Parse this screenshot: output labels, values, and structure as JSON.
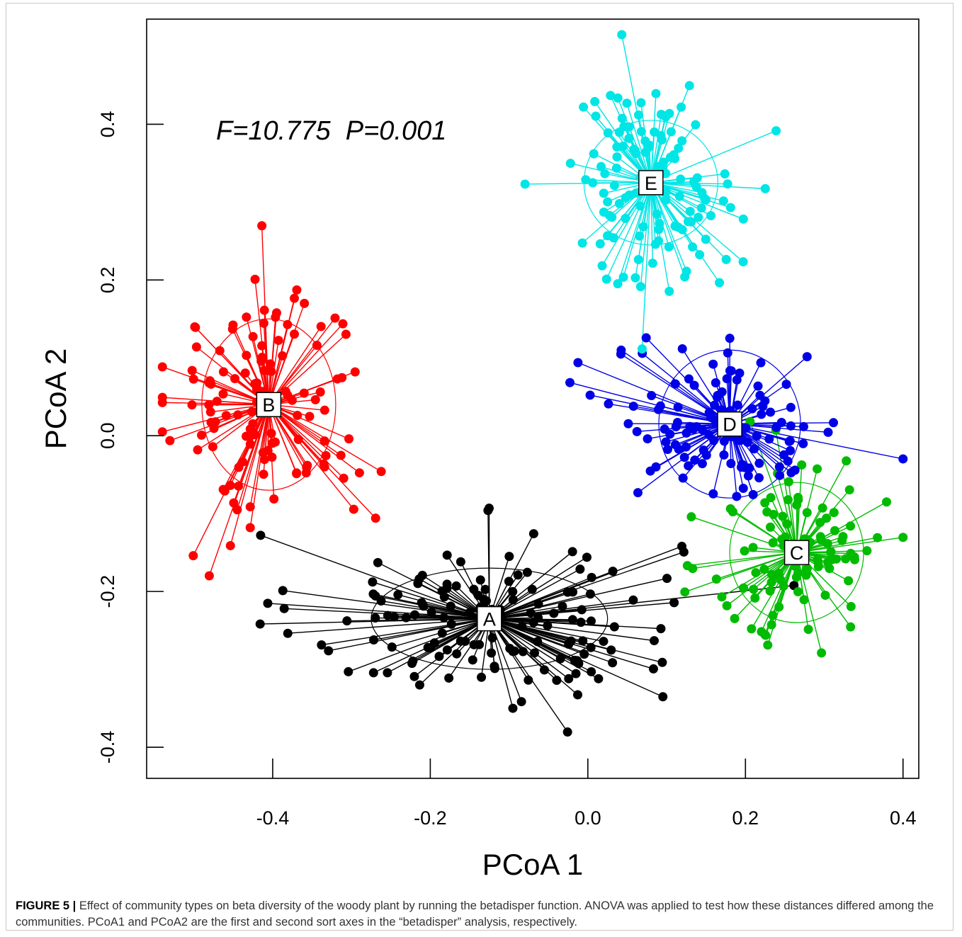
{
  "figure": {
    "caption_label": "FIGURE 5 |",
    "caption_text": " Effect of community types on beta diversity of the woody plant by running the betadisper function. ANOVA was applied to test how these distances differed among the communities. PCoA1 and PCoA2 are the first and second sort axes in the “betadisper” analysis, respectively."
  },
  "chart_data": {
    "type": "scatter",
    "xlabel": "PCoA 1",
    "ylabel": "PCoA 2",
    "xlim": [
      -0.56,
      0.42
    ],
    "ylim": [
      -0.44,
      0.535
    ],
    "xticks": [
      -0.4,
      -0.2,
      0.0,
      0.2,
      0.4
    ],
    "xtick_labels": [
      "-0.4",
      "-0.2",
      "0.0",
      "0.2",
      "0.4"
    ],
    "yticks": [
      -0.4,
      -0.2,
      0.0,
      0.2,
      0.4
    ],
    "ytick_labels": [
      "-0.4",
      "-0.2",
      "0.0",
      "0.2",
      "0.4"
    ],
    "annotation": "F=10.775  P=0.001",
    "grid": false,
    "groups": [
      {
        "label": "A",
        "color": "#000000",
        "centroid": [
          -0.125,
          -0.235
        ],
        "ellipse_r": [
          0.15,
          0.065
        ],
        "n": 150,
        "spread": [
          0.12,
          0.055
        ]
      },
      {
        "label": "B",
        "color": "#ff0000",
        "centroid": [
          -0.405,
          0.04
        ],
        "ellipse_r": [
          0.085,
          0.11
        ],
        "n": 125,
        "spread": [
          0.065,
          0.085
        ]
      },
      {
        "label": "C",
        "color": "#00bb00",
        "centroid": [
          0.265,
          -0.15
        ],
        "ellipse_r": [
          0.085,
          0.09
        ],
        "n": 110,
        "spread": [
          0.055,
          0.06
        ]
      },
      {
        "label": "D",
        "color": "#0000e6",
        "centroid": [
          0.18,
          0.015
        ],
        "ellipse_r": [
          0.09,
          0.095
        ],
        "n": 120,
        "spread": [
          0.075,
          0.05
        ]
      },
      {
        "label": "E",
        "color": "#00e5e5",
        "centroid": [
          0.08,
          0.325
        ],
        "ellipse_r": [
          0.085,
          0.08
        ],
        "n": 130,
        "spread": [
          0.055,
          0.065
        ]
      }
    ]
  }
}
